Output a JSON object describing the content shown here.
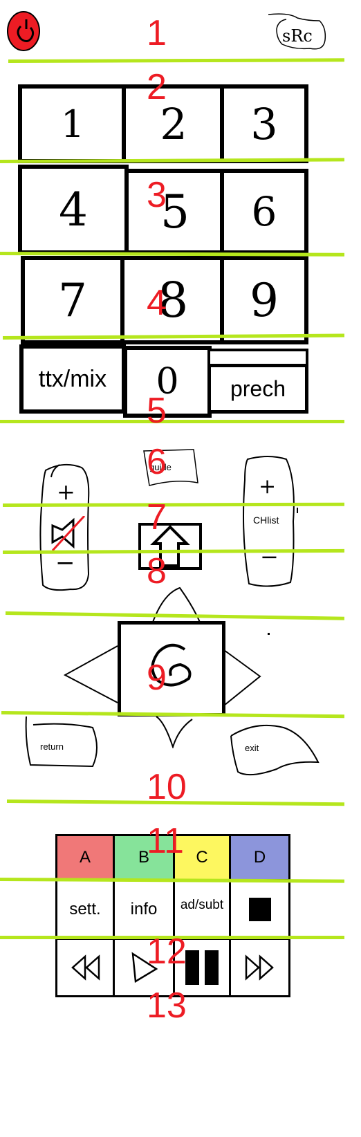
{
  "section_numbers": [
    "1",
    "2",
    "3",
    "4",
    "5",
    "6",
    "7",
    "8",
    "9",
    "10",
    "11",
    "12",
    "13"
  ],
  "top": {
    "source_label": "sRc"
  },
  "numpad": {
    "digits": [
      "1",
      "2",
      "3",
      "4",
      "5",
      "6",
      "7",
      "8",
      "9",
      "0"
    ],
    "ttx_label": "ttx/mix",
    "prech_label": "prech"
  },
  "middle": {
    "guide_label": "guide",
    "vol_up": "+",
    "vol_down": "−",
    "ch_up": "+",
    "ch_down": "−",
    "chlist_label": "CHlist",
    "ok_label": "@",
    "return_label": "return",
    "exit_label": "exit"
  },
  "colors": {
    "labels": [
      "A",
      "B",
      "C",
      "D"
    ],
    "fills": [
      "#f07878",
      "#86e39a",
      "#fdf760",
      "#8c95db"
    ],
    "line": "#b5e61d",
    "number": "#ed1c24",
    "power": "#ed1c24"
  },
  "function_row": {
    "settings": "sett.",
    "info": "info",
    "audio_subtitle": "ad/subt"
  }
}
